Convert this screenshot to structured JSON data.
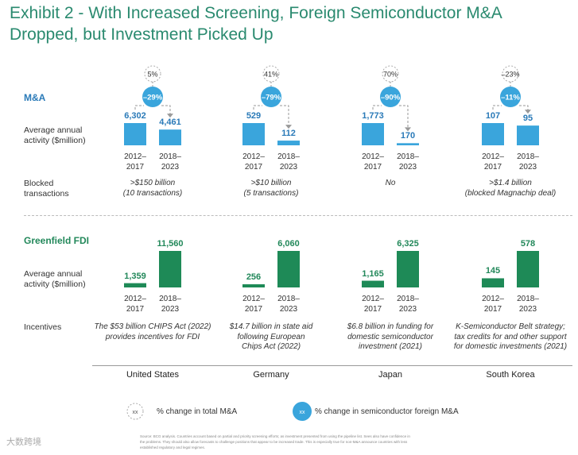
{
  "title": "Exhibit 2 - With Increased Screening, Foreign Semiconductor M&A Dropped, but Investment Picked Up",
  "sections": {
    "ma": "M&A",
    "fdi": "Greenfield FDI"
  },
  "row_labels": {
    "ma_activity": "Average annual activity ($million)",
    "blocked": "Blocked transactions",
    "fdi_activity": "Average annual activity ($million)",
    "incentives": "Incentives"
  },
  "periods": [
    "2012–2017",
    "2018–2023"
  ],
  "chart_data": {
    "type": "bar",
    "title": "Exhibit 2 - With Increased Screening, Foreign Semiconductor M&A Dropped, but Investment Picked Up",
    "categories": [
      "United States",
      "Germany",
      "Japan",
      "South Korea"
    ],
    "periods": [
      "2012–2017",
      "2018–2023"
    ],
    "ma": {
      "ylabel": "Average annual activity ($million)",
      "values": [
        [
          6302,
          4461
        ],
        [
          529,
          112
        ],
        [
          1773,
          170
        ],
        [
          107,
          95
        ]
      ],
      "labels": [
        [
          "6,302",
          "4,461"
        ],
        [
          "529",
          "112"
        ],
        [
          "1,773",
          "170"
        ],
        [
          "107",
          "95"
        ]
      ],
      "pct_total": [
        "5%",
        "41%",
        "70%",
        "–23%"
      ],
      "pct_semi": [
        "–29%",
        "–79%",
        "–90%",
        "–11%"
      ],
      "color": "#3aa5dc"
    },
    "fdi": {
      "ylabel": "Average annual activity ($million)",
      "values": [
        [
          1359,
          11560
        ],
        [
          256,
          6060
        ],
        [
          1165,
          6325
        ],
        [
          145,
          578
        ]
      ],
      "labels": [
        [
          "1,359",
          "11,560"
        ],
        [
          "256",
          "6,060"
        ],
        [
          "1,165",
          "6,325"
        ],
        [
          "145",
          "578"
        ]
      ],
      "color": "#1e8a57"
    },
    "blocked": [
      ">$150 billion\n(10 transactions)",
      ">$10 billion\n(5 transactions)",
      "No",
      ">$1.4 billion\n(blocked Magnachip deal)"
    ],
    "incentives": [
      "The $53 billion CHIPS Act (2022)\nprovides incentives for FDI",
      "$14.7 billion in state aid\nfollowing European\nChips Act (2022)",
      "$6.8 billion in funding for\ndomestic semiconductor\ninvestment (2021)",
      "K-Semiconductor Belt strategy;\ntax credits for and other support\nfor domestic investments (2021)"
    ]
  },
  "legend": {
    "marker_text": "xx",
    "total": "% change in total M&A",
    "semi": "% change in semiconductor foreign M&A"
  },
  "footnote": "Source: BCG analysis. Countries account based on partial and priority screening efforts; as investment presented from using the pipeline list. Sees also have confidence in the problems. They should also allow forecasts to challenge positions that appear to be increased trade. This is especially true for non-M&A announce countries with less established regulatory and legal regimes.",
  "watermark": "大数跨境"
}
